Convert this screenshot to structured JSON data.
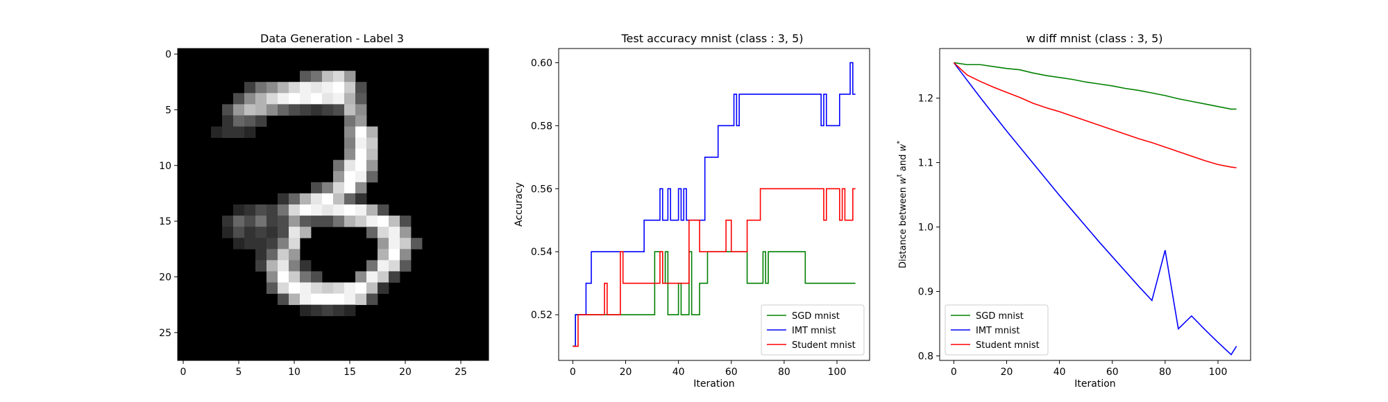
{
  "chart_data": [
    {
      "type": "heatmap",
      "title": "Data Generation - Label 3",
      "xlim": [
        -0.5,
        27.5
      ],
      "ylim": [
        27.5,
        -0.5
      ],
      "xticks": [
        "0",
        "5",
        "10",
        "15",
        "20",
        "25"
      ],
      "yticks": [
        "0",
        "5",
        "10",
        "15",
        "20",
        "25"
      ],
      "colormap": "gray",
      "rows": 28,
      "cols": 28,
      "pixels": [
        {
          "row": 2,
          "cols": [
            11,
            12,
            13,
            14,
            15
          ],
          "values": [
            0.35,
            0.45,
            0.75,
            0.85,
            0.6
          ]
        },
        {
          "row": 3,
          "cols": [
            6,
            7,
            8,
            9,
            10,
            11,
            12,
            13,
            14,
            15,
            16
          ],
          "values": [
            0.25,
            0.45,
            0.55,
            0.7,
            0.85,
            0.95,
            0.9,
            0.95,
            1.0,
            0.8,
            0.3
          ]
        },
        {
          "row": 4,
          "cols": [
            5,
            6,
            7,
            8,
            9,
            10,
            11,
            12,
            13,
            14,
            15,
            16
          ],
          "values": [
            0.3,
            0.55,
            0.7,
            0.85,
            0.95,
            1.0,
            0.95,
            1.0,
            0.9,
            0.95,
            0.7,
            0.35
          ]
        },
        {
          "row": 5,
          "cols": [
            4,
            5,
            6,
            7,
            8,
            9,
            10,
            11,
            12,
            13,
            14,
            15,
            16
          ],
          "values": [
            0.3,
            0.6,
            0.75,
            0.7,
            0.55,
            0.4,
            0.3,
            0.25,
            0.2,
            0.25,
            0.3,
            0.75,
            0.55
          ]
        },
        {
          "row": 6,
          "cols": [
            4,
            5,
            6,
            7,
            15,
            16
          ],
          "values": [
            0.2,
            0.4,
            0.35,
            0.25,
            0.45,
            0.6
          ]
        },
        {
          "row": 7,
          "cols": [
            3,
            4,
            5,
            6,
            15,
            16,
            17
          ],
          "values": [
            0.15,
            0.2,
            0.2,
            0.15,
            0.55,
            1.0,
            0.7
          ]
        },
        {
          "row": 8,
          "cols": [
            15,
            16,
            17
          ],
          "values": [
            0.5,
            0.95,
            0.8
          ]
        },
        {
          "row": 9,
          "cols": [
            15,
            16,
            17
          ],
          "values": [
            0.55,
            1.0,
            0.75
          ]
        },
        {
          "row": 10,
          "cols": [
            14,
            15,
            16,
            17
          ],
          "values": [
            0.45,
            0.9,
            1.0,
            0.6
          ]
        },
        {
          "row": 11,
          "cols": [
            14,
            15,
            16,
            17
          ],
          "values": [
            0.6,
            1.0,
            0.95,
            0.4
          ]
        },
        {
          "row": 12,
          "cols": [
            12,
            13,
            14,
            15,
            16
          ],
          "values": [
            0.3,
            0.5,
            0.85,
            1.0,
            0.55
          ]
        },
        {
          "row": 13,
          "cols": [
            9,
            10,
            11,
            12,
            13,
            14,
            15,
            16
          ],
          "values": [
            0.2,
            0.4,
            0.7,
            0.9,
            1.0,
            0.75,
            0.4,
            0.2
          ]
        },
        {
          "row": 14,
          "cols": [
            5,
            6,
            7,
            8,
            9,
            10,
            11,
            12,
            13,
            14,
            15,
            16,
            17,
            18
          ],
          "values": [
            0.15,
            0.2,
            0.3,
            0.25,
            0.45,
            0.85,
            1.0,
            0.95,
            0.9,
            0.95,
            1.0,
            0.95,
            0.7,
            0.3
          ]
        },
        {
          "row": 15,
          "cols": [
            4,
            5,
            6,
            7,
            8,
            9,
            10,
            11,
            12,
            13,
            14,
            15,
            16,
            17,
            18,
            19,
            20
          ],
          "values": [
            0.2,
            0.4,
            0.3,
            0.45,
            0.25,
            0.3,
            0.6,
            0.35,
            0.3,
            0.3,
            0.45,
            0.7,
            0.8,
            0.95,
            1.0,
            0.75,
            0.3
          ]
        },
        {
          "row": 16,
          "cols": [
            4,
            5,
            6,
            7,
            8,
            9,
            10,
            11,
            17,
            18,
            19,
            20
          ],
          "values": [
            0.15,
            0.3,
            0.2,
            0.25,
            0.2,
            0.3,
            0.9,
            0.7,
            0.4,
            0.85,
            0.95,
            0.6
          ]
        },
        {
          "row": 17,
          "cols": [
            5,
            6,
            7,
            8,
            9,
            10,
            18,
            19,
            20,
            21
          ],
          "values": [
            0.15,
            0.2,
            0.2,
            0.25,
            0.5,
            0.85,
            0.6,
            0.95,
            0.8,
            0.35
          ]
        },
        {
          "row": 18,
          "cols": [
            7,
            8,
            9,
            10,
            18,
            19,
            20
          ],
          "values": [
            0.2,
            0.4,
            0.8,
            0.6,
            0.7,
            1.0,
            0.55
          ]
        },
        {
          "row": 19,
          "cols": [
            7,
            8,
            9,
            10,
            11,
            17,
            18,
            19,
            20
          ],
          "values": [
            0.25,
            0.7,
            0.9,
            0.5,
            0.2,
            0.45,
            0.95,
            0.85,
            0.35
          ]
        },
        {
          "row": 20,
          "cols": [
            8,
            9,
            10,
            11,
            12,
            16,
            17,
            18,
            19
          ],
          "values": [
            0.55,
            1.0,
            0.8,
            0.45,
            0.3,
            0.55,
            0.95,
            0.8,
            0.25
          ]
        },
        {
          "row": 21,
          "cols": [
            8,
            9,
            10,
            11,
            12,
            13,
            14,
            15,
            16,
            17,
            18
          ],
          "values": [
            0.35,
            0.85,
            1.0,
            0.95,
            0.85,
            0.8,
            0.85,
            0.95,
            1.0,
            0.75,
            0.2
          ]
        },
        {
          "row": 22,
          "cols": [
            9,
            10,
            11,
            12,
            13,
            14,
            15,
            16,
            17
          ],
          "values": [
            0.3,
            0.7,
            0.95,
            1.0,
            1.0,
            1.0,
            0.95,
            0.8,
            0.3
          ]
        },
        {
          "row": 23,
          "cols": [
            11,
            12,
            13,
            14,
            15
          ],
          "values": [
            0.15,
            0.2,
            0.25,
            0.2,
            0.15
          ]
        }
      ]
    },
    {
      "type": "line",
      "title": "Test accuracy mnist (class : 3, 5)",
      "xlabel": "Iteration",
      "ylabel": "Accuracy",
      "xlim": [
        -5.35,
        112.35
      ],
      "ylim": [
        0.5055,
        0.6045
      ],
      "xticks": [
        0,
        20,
        40,
        60,
        80,
        100
      ],
      "yticks": [
        0.52,
        0.54,
        0.56,
        0.58,
        0.6
      ],
      "xtick_labels": [
        "0",
        "20",
        "40",
        "60",
        "80",
        "100"
      ],
      "ytick_labels": [
        "0.52",
        "0.54",
        "0.56",
        "0.58",
        "0.60"
      ],
      "legend": "lower-right",
      "series": [
        {
          "name": "SGD mnist",
          "color": "#008000",
          "steps": [
            [
              0,
              0.51
            ],
            [
              1,
              0.52
            ],
            [
              31,
              0.54
            ],
            [
              34,
              0.53
            ],
            [
              35,
              0.54
            ],
            [
              36,
              0.52
            ],
            [
              39,
              0.52
            ],
            [
              40,
              0.53
            ],
            [
              41,
              0.52
            ],
            [
              44,
              0.54
            ],
            [
              45,
              0.52
            ],
            [
              47,
              0.52
            ],
            [
              48,
              0.53
            ],
            [
              51,
              0.54
            ],
            [
              66,
              0.53
            ],
            [
              72,
              0.54
            ],
            [
              73,
              0.53
            ],
            [
              74,
              0.54
            ],
            [
              88,
              0.53
            ],
            [
              107,
              0.53
            ]
          ]
        },
        {
          "name": "IMT mnist",
          "color": "#0000ff",
          "steps": [
            [
              0,
              0.51
            ],
            [
              1,
              0.52
            ],
            [
              5,
              0.53
            ],
            [
              6,
              0.53
            ],
            [
              7,
              0.54
            ],
            [
              27,
              0.55
            ],
            [
              33,
              0.56
            ],
            [
              34,
              0.55
            ],
            [
              36,
              0.56
            ],
            [
              37,
              0.55
            ],
            [
              40,
              0.56
            ],
            [
              41,
              0.55
            ],
            [
              42,
              0.56
            ],
            [
              43,
              0.55
            ],
            [
              50,
              0.57
            ],
            [
              55,
              0.58
            ],
            [
              61,
              0.59
            ],
            [
              62,
              0.58
            ],
            [
              63,
              0.59
            ],
            [
              94,
              0.58
            ],
            [
              95,
              0.59
            ],
            [
              96,
              0.58
            ],
            [
              101,
              0.59
            ],
            [
              105,
              0.6
            ],
            [
              106,
              0.59
            ],
            [
              107,
              0.59
            ]
          ]
        },
        {
          "name": "Student mnist",
          "color": "#ff0000",
          "steps": [
            [
              0,
              0.51
            ],
            [
              1,
              0.51
            ],
            [
              2,
              0.52
            ],
            [
              12,
              0.53
            ],
            [
              13,
              0.52
            ],
            [
              18,
              0.54
            ],
            [
              19,
              0.53
            ],
            [
              33,
              0.54
            ],
            [
              34,
              0.53
            ],
            [
              44,
              0.55
            ],
            [
              48,
              0.54
            ],
            [
              58,
              0.55
            ],
            [
              60,
              0.54
            ],
            [
              66,
              0.55
            ],
            [
              71,
              0.56
            ],
            [
              95,
              0.55
            ],
            [
              96,
              0.56
            ],
            [
              101,
              0.55
            ],
            [
              102,
              0.56
            ],
            [
              103,
              0.55
            ],
            [
              106,
              0.56
            ],
            [
              107,
              0.56
            ]
          ]
        }
      ]
    },
    {
      "type": "line",
      "title": "w diff mnist (class : 3, 5)",
      "xlabel": "Iteration",
      "ylabel": "Distance between w^t and w^*",
      "ylabel_parts": {
        "prefix": "Distance between ",
        "var1": "w",
        "sup1": "t",
        "mid": " and ",
        "var2": "w",
        "sup2": "*"
      },
      "xlim": [
        -5.35,
        112.35
      ],
      "ylim": [
        0.793,
        1.277
      ],
      "xticks": [
        0,
        20,
        40,
        60,
        80,
        100
      ],
      "yticks": [
        0.8,
        0.9,
        1.0,
        1.1,
        1.2
      ],
      "xtick_labels": [
        "0",
        "20",
        "40",
        "60",
        "80",
        "100"
      ],
      "ytick_labels": [
        "0.8",
        "0.9",
        "1.0",
        "1.1",
        "1.2"
      ],
      "legend": "lower-left",
      "series": [
        {
          "name": "SGD mnist",
          "color": "#008000",
          "x": [
            0,
            5,
            10,
            15,
            20,
            25,
            30,
            35,
            40,
            45,
            50,
            55,
            60,
            65,
            70,
            75,
            80,
            85,
            90,
            95,
            100,
            105,
            107
          ],
          "y": [
            1.255,
            1.252,
            1.252,
            1.249,
            1.246,
            1.244,
            1.239,
            1.235,
            1.232,
            1.229,
            1.225,
            1.222,
            1.219,
            1.215,
            1.212,
            1.208,
            1.204,
            1.199,
            1.195,
            1.191,
            1.187,
            1.183,
            1.183
          ]
        },
        {
          "name": "IMT mnist",
          "color": "#0000ff",
          "x": [
            0,
            5,
            10,
            15,
            20,
            25,
            30,
            35,
            40,
            45,
            50,
            55,
            60,
            65,
            70,
            75,
            80,
            85,
            90,
            95,
            100,
            105,
            107
          ],
          "y": [
            1.255,
            1.228,
            1.201,
            1.175,
            1.149,
            1.124,
            1.099,
            1.074,
            1.049,
            1.025,
            1.001,
            0.977,
            0.954,
            0.931,
            0.908,
            0.886,
            0.964,
            0.842,
            0.862,
            0.841,
            0.821,
            0.802,
            0.815
          ]
        },
        {
          "name": "Student mnist",
          "color": "#ff0000",
          "x": [
            0,
            5,
            10,
            15,
            20,
            25,
            30,
            35,
            40,
            45,
            50,
            55,
            60,
            65,
            70,
            75,
            80,
            85,
            90,
            95,
            100,
            105,
            107
          ],
          "y": [
            1.255,
            1.236,
            1.226,
            1.217,
            1.209,
            1.201,
            1.192,
            1.185,
            1.179,
            1.172,
            1.165,
            1.158,
            1.151,
            1.144,
            1.137,
            1.131,
            1.124,
            1.117,
            1.11,
            1.103,
            1.097,
            1.093,
            1.092
          ]
        }
      ]
    }
  ]
}
